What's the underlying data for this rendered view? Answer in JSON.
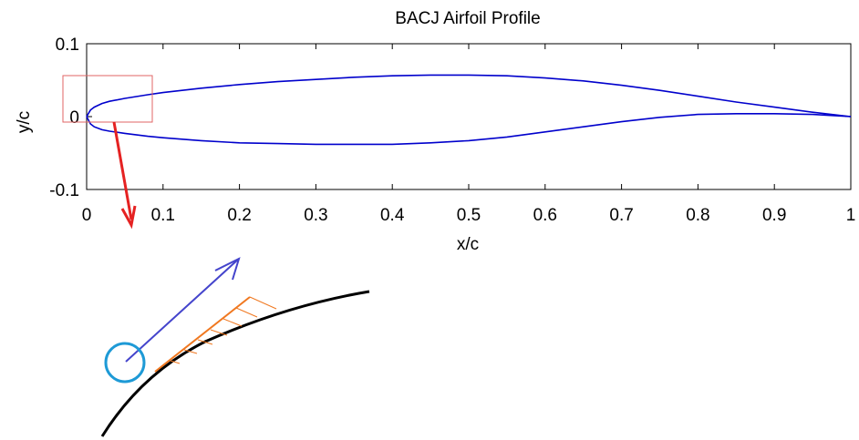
{
  "chart_data": {
    "type": "line",
    "title": "BACJ Airfoil Profile",
    "xlabel": "x/c",
    "ylabel": "y/c",
    "xlim": [
      0,
      1
    ],
    "ylim": [
      -0.1,
      0.1
    ],
    "xticks": [
      "0",
      "0.1",
      "0.2",
      "0.3",
      "0.4",
      "0.5",
      "0.6",
      "0.7",
      "0.8",
      "0.9",
      "1"
    ],
    "yticks": [
      "-0.1",
      "0",
      "0.1"
    ],
    "grid": false,
    "series": [
      {
        "color": "#0000cc",
        "x": [
          0,
          0.005,
          0.01,
          0.02,
          0.03,
          0.05,
          0.08,
          0.1,
          0.15,
          0.2,
          0.25,
          0.3,
          0.35,
          0.4,
          0.45,
          0.5,
          0.55,
          0.6,
          0.65,
          0.7,
          0.75,
          0.8,
          0.85,
          0.9,
          0.95,
          1.0
        ],
        "y": [
          0.0,
          0.009,
          0.013,
          0.018,
          0.021,
          0.025,
          0.03,
          0.033,
          0.039,
          0.044,
          0.048,
          0.051,
          0.054,
          0.056,
          0.057,
          0.057,
          0.056,
          0.053,
          0.049,
          0.043,
          0.036,
          0.028,
          0.02,
          0.013,
          0.006,
          0.0
        ]
      },
      {
        "color": "#0000cc",
        "x": [
          0,
          0.005,
          0.01,
          0.02,
          0.03,
          0.05,
          0.08,
          0.1,
          0.15,
          0.2,
          0.25,
          0.3,
          0.35,
          0.4,
          0.45,
          0.5,
          0.55,
          0.6,
          0.65,
          0.7,
          0.75,
          0.8,
          0.85,
          0.9,
          0.95,
          1.0
        ],
        "y": [
          0.0,
          -0.01,
          -0.014,
          -0.018,
          -0.02,
          -0.023,
          -0.027,
          -0.029,
          -0.033,
          -0.036,
          -0.037,
          -0.038,
          -0.038,
          -0.038,
          -0.036,
          -0.033,
          -0.028,
          -0.021,
          -0.014,
          -0.007,
          -0.001,
          0.003,
          0.004,
          0.004,
          0.003,
          0.0
        ]
      }
    ],
    "annotations": {
      "zoom_box_color": "#e06666",
      "arrow_color": "#e52222",
      "surface_color": "#000000",
      "vector_color": "#4444cc",
      "circle_color": "#1e9ad6",
      "profile_color": "#f07820"
    }
  }
}
